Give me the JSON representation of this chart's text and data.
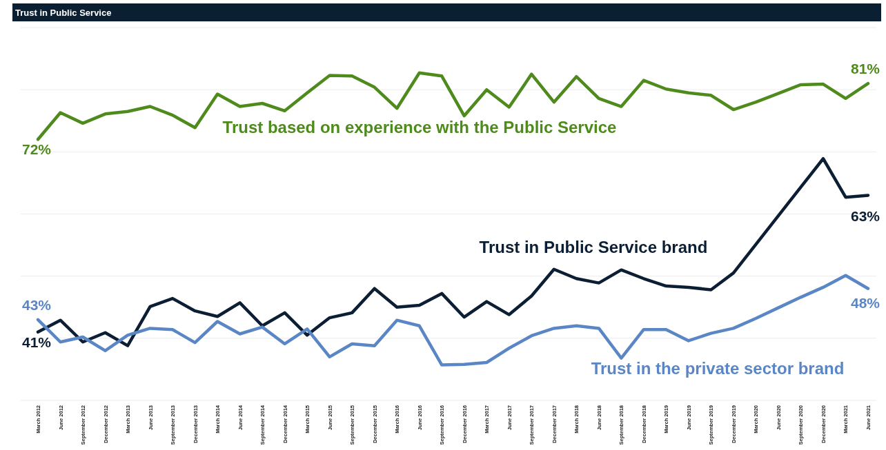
{
  "chart_data": {
    "type": "line",
    "title": "Trust in Public Service",
    "categories": [
      "March 2012",
      "June 2012",
      "September 2012",
      "December 2012",
      "March 2013",
      "June 2013",
      "September 2013",
      "December 2013",
      "March 2014",
      "June 2014",
      "September 2014",
      "December 2014",
      "March 2015",
      "June 2015",
      "September 2015",
      "December 2015",
      "March 2016",
      "June 2016",
      "September 2016",
      "December 2016",
      "March 2017",
      "June 2017",
      "September 2017",
      "December 2017",
      "March 2018",
      "June 2018",
      "September 2018",
      "December 2018",
      "March 2019",
      "June 2019",
      "September 2019",
      "December 2019",
      "March 2020",
      "June 2020",
      "September 2020",
      "December 2020",
      "March 2021",
      "June 2021"
    ],
    "ylim": [
      30,
      90
    ],
    "yticks": [
      {
        "value": 30,
        "label": null
      },
      {
        "value": 40,
        "label": null
      },
      {
        "value": 50,
        "label": null
      },
      {
        "value": 60,
        "label": null
      },
      {
        "value": 70,
        "label": null
      },
      {
        "value": 80,
        "label": null
      },
      {
        "value": 90,
        "label": null
      }
    ],
    "grid": "y",
    "tick_labels": "x",
    "series": [
      {
        "name": "Trust based on experience with the Public Service",
        "color": "#4e8a1c",
        "values": [
          72,
          76.3,
          74.6,
          76.1,
          76.5,
          77.3,
          75.9,
          73.9,
          79.3,
          77.3,
          77.8,
          76.6,
          79.5,
          82.3,
          82.2,
          80.4,
          77,
          82.7,
          82.2,
          75.8,
          80,
          77.2,
          82.5,
          78,
          82.1,
          78.6,
          77.3,
          81.5,
          80.1,
          79.5,
          79.1,
          76.8,
          78,
          79.4,
          80.8,
          80.9,
          78.6,
          81
        ],
        "value_labels": [
          "72%",
          null,
          null,
          null,
          null,
          null,
          null,
          null,
          null,
          null,
          null,
          null,
          null,
          null,
          null,
          null,
          null,
          null,
          null,
          null,
          null,
          null,
          null,
          null,
          null,
          null,
          null,
          null,
          null,
          null,
          null,
          null,
          null,
          null,
          null,
          null,
          null,
          "81%"
        ]
      },
      {
        "name": "Trust in Public Service brand",
        "color": "#0c1e33",
        "values": [
          41,
          42.9,
          39.4,
          40.9,
          38.8,
          45.1,
          46.4,
          44.4,
          43.5,
          45.7,
          42,
          44.1,
          40.5,
          43.3,
          44.1,
          48,
          45,
          45.3,
          47.2,
          43.4,
          45.9,
          43.8,
          46.8,
          51.1,
          49.6,
          48.9,
          51,
          49.6,
          48.4,
          48.2,
          47.8,
          50.5,
          55.1,
          59.7,
          64.3,
          68.9,
          62.7,
          63
        ],
        "value_labels": [
          "41%",
          null,
          null,
          null,
          null,
          null,
          null,
          null,
          null,
          null,
          null,
          null,
          null,
          null,
          null,
          null,
          null,
          null,
          null,
          null,
          null,
          null,
          null,
          null,
          null,
          null,
          null,
          null,
          null,
          null,
          null,
          null,
          null,
          null,
          null,
          null,
          null,
          "63%"
        ]
      },
      {
        "name": "Trust in the private sector brand",
        "color": "#5b86c6",
        "values": [
          43,
          39.4,
          40.2,
          38,
          40.5,
          41.6,
          41.4,
          39.3,
          42.7,
          40.7,
          41.8,
          39.1,
          41.5,
          37,
          39.1,
          38.8,
          42.9,
          42,
          35.7,
          35.8,
          36.1,
          38.4,
          40.4,
          41.6,
          42,
          41.6,
          36.8,
          41.4,
          41.4,
          39.6,
          40.8,
          41.6,
          43.2,
          44.9,
          46.6,
          48.2,
          50.1,
          48
        ],
        "value_labels": [
          "43%",
          null,
          null,
          null,
          null,
          null,
          null,
          null,
          null,
          null,
          null,
          null,
          null,
          null,
          null,
          null,
          null,
          null,
          null,
          null,
          null,
          null,
          null,
          null,
          null,
          null,
          null,
          null,
          null,
          null,
          null,
          null,
          null,
          null,
          null,
          null,
          null,
          "48%"
        ]
      }
    ]
  }
}
